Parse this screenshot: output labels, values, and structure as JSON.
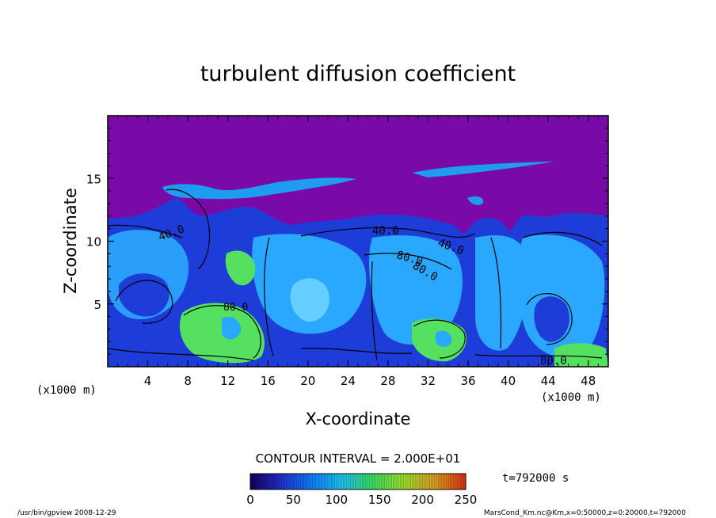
{
  "chart_data": {
    "type": "heatmap",
    "title": "turbulent diffusion coefficient",
    "xlabel": "X-coordinate",
    "ylabel": "Z-coordinate",
    "x_unit": "(x1000 m)",
    "x_unit_right": "(x1000 m)",
    "xlim": [
      0,
      50
    ],
    "ylim": [
      0,
      20
    ],
    "x_ticks": [
      4,
      8,
      12,
      16,
      20,
      24,
      28,
      32,
      36,
      40,
      44,
      48
    ],
    "y_ticks": [
      5,
      10,
      15
    ],
    "contour_interval_text": "CONTOUR INTERVAL = 2.000E+01",
    "contour_labels": [
      "40.0",
      "40.0",
      "40.0",
      "80.0",
      "80.0",
      "80.0",
      "80.0"
    ],
    "colorbar": {
      "min": 0,
      "max": 250,
      "ticks": [
        0,
        50,
        100,
        150,
        200,
        250
      ],
      "colormap": [
        "#140060",
        "#2030d0",
        "#1080ff",
        "#20c8f0",
        "#40e060",
        "#a0e030",
        "#e0a020",
        "#e03010"
      ]
    },
    "time_label": "t=792000 s",
    "colors": {
      "above_boundary": "#7a0aa8",
      "low": "#1e3cd8",
      "mid": "#2aa8ff",
      "high": "#55e060"
    }
  },
  "footer": {
    "left": "/usr/bin/gpview   2008-12-29",
    "right": "MarsCond_Km.nc@Km,x=0:50000,z=0:20000,t=792000"
  }
}
